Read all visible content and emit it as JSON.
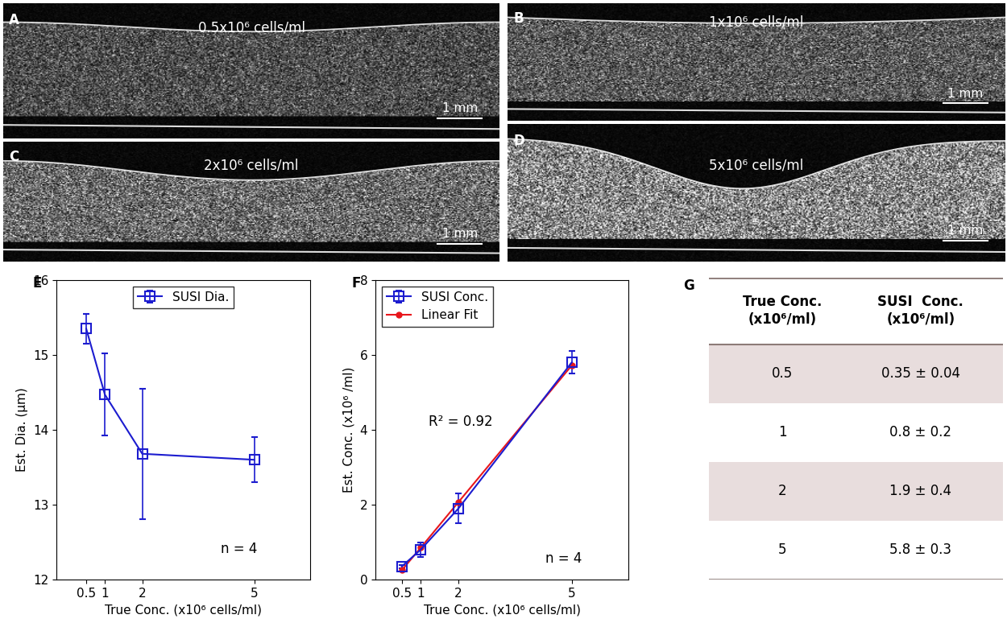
{
  "panels": [
    {
      "label": "A",
      "text": "0.5x10⁶ cells/ml",
      "scale_bar": "1 mm"
    },
    {
      "label": "B",
      "text": "1x10⁶ cells/ml",
      "scale_bar": "1 mm"
    },
    {
      "label": "C",
      "text": "2x10⁶ cells/ml",
      "scale_bar": "1 mm"
    },
    {
      "label": "D",
      "text": "5x10⁶ cells/ml",
      "scale_bar": "1 mm"
    }
  ],
  "chart_data": [
    {
      "panel": "E",
      "type": "line",
      "x_label": "True Conc. (x10⁶ cells/ml)",
      "y_label": "Est. Dia. (μm)",
      "x": [
        0.5,
        1,
        2,
        5
      ],
      "xlim": [
        -0.3,
        6.5
      ],
      "xticks": [
        0.5,
        1,
        2,
        5
      ],
      "ylim": [
        12,
        16
      ],
      "yticks": [
        12,
        13,
        14,
        15,
        16
      ],
      "grid": false,
      "legend": "upper center",
      "series": [
        {
          "name": "SUSI Dia.",
          "color": "#1c1ccf",
          "marker": "square",
          "line_style": "solid",
          "values": [
            15.35,
            14.47,
            13.68,
            13.6
          ],
          "errors": [
            0.2,
            0.55,
            0.87,
            0.3
          ]
        }
      ],
      "annotations": [
        "n = 4"
      ]
    },
    {
      "panel": "F",
      "type": "line",
      "x_label": "True Conc. (x10⁶ cells/ml)",
      "y_label": "Est. Conc. (x10⁶ /ml)",
      "x": [
        0.5,
        1,
        2,
        5
      ],
      "xlim": [
        -0.2,
        6.5
      ],
      "xticks": [
        0.5,
        1,
        2,
        5
      ],
      "ylim": [
        0,
        8
      ],
      "yticks": [
        0,
        2,
        4,
        6,
        8
      ],
      "grid": false,
      "legend": "upper left",
      "series": [
        {
          "name": "SUSI Conc.",
          "color": "#1c1ccf",
          "marker": "square",
          "line_style": "solid",
          "values": [
            0.35,
            0.8,
            1.9,
            5.8
          ],
          "errors": [
            0.04,
            0.2,
            0.4,
            0.3
          ]
        },
        {
          "name": "Linear Fit",
          "color": "#e8161b",
          "marker": "dot",
          "line_style": "solid",
          "values": [
            0.25,
            0.85,
            2.07,
            5.72
          ]
        }
      ],
      "annotations": [
        "R² = 0.92",
        "n = 4"
      ]
    }
  ],
  "table": {
    "panel": "G",
    "header": [
      "True Conc.\n(x10⁶/ml)",
      "SUSI  Conc.\n(x10⁶/ml)"
    ],
    "rows": [
      [
        "0.5",
        "0.35 ± 0.04"
      ],
      [
        "1",
        "0.8 ± 0.2"
      ],
      [
        "2",
        "1.9 ± 0.4"
      ],
      [
        "5",
        "5.8 ± 0.3"
      ]
    ]
  }
}
